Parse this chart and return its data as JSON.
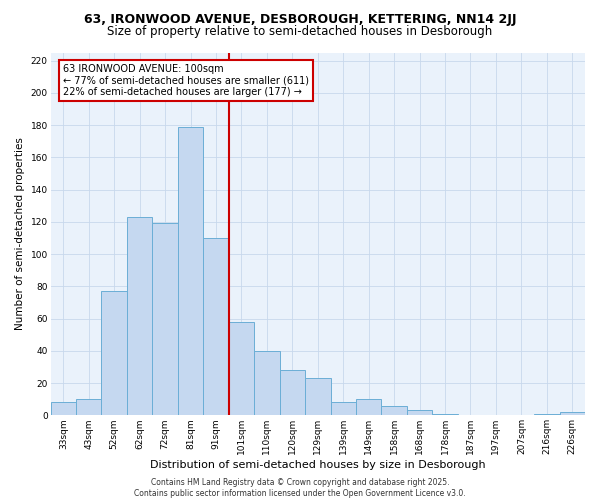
{
  "title1": "63, IRONWOOD AVENUE, DESBOROUGH, KETTERING, NN14 2JJ",
  "title2": "Size of property relative to semi-detached houses in Desborough",
  "xlabel": "Distribution of semi-detached houses by size in Desborough",
  "ylabel": "Number of semi-detached properties",
  "bar_labels": [
    "33sqm",
    "43sqm",
    "52sqm",
    "62sqm",
    "72sqm",
    "81sqm",
    "91sqm",
    "101sqm",
    "110sqm",
    "120sqm",
    "129sqm",
    "139sqm",
    "149sqm",
    "158sqm",
    "168sqm",
    "178sqm",
    "187sqm",
    "197sqm",
    "207sqm",
    "216sqm",
    "226sqm"
  ],
  "bar_values": [
    8,
    10,
    77,
    123,
    119,
    179,
    110,
    58,
    40,
    28,
    23,
    8,
    10,
    6,
    3,
    1,
    0,
    0,
    0,
    1,
    2
  ],
  "bar_color": "#c5d8f0",
  "bar_edge_color": "#6baed6",
  "ref_line_index": 7,
  "ref_line_color": "#cc0000",
  "annotation_text": "63 IRONWOOD AVENUE: 100sqm\n← 77% of semi-detached houses are smaller (611)\n22% of semi-detached houses are larger (177) →",
  "annotation_box_color": "#ffffff",
  "annotation_box_edge": "#cc0000",
  "ylim": [
    0,
    225
  ],
  "yticks": [
    0,
    20,
    40,
    60,
    80,
    100,
    120,
    140,
    160,
    180,
    200,
    220
  ],
  "background_color": "#ffffff",
  "plot_bg_color": "#eaf2fb",
  "grid_color": "#c8d8ec",
  "footer_text": "Contains HM Land Registry data © Crown copyright and database right 2025.\nContains public sector information licensed under the Open Government Licence v3.0.",
  "title1_fontsize": 9,
  "title2_fontsize": 8.5,
  "xlabel_fontsize": 8,
  "ylabel_fontsize": 7.5,
  "tick_fontsize": 6.5,
  "annotation_fontsize": 7,
  "footer_fontsize": 5.5
}
